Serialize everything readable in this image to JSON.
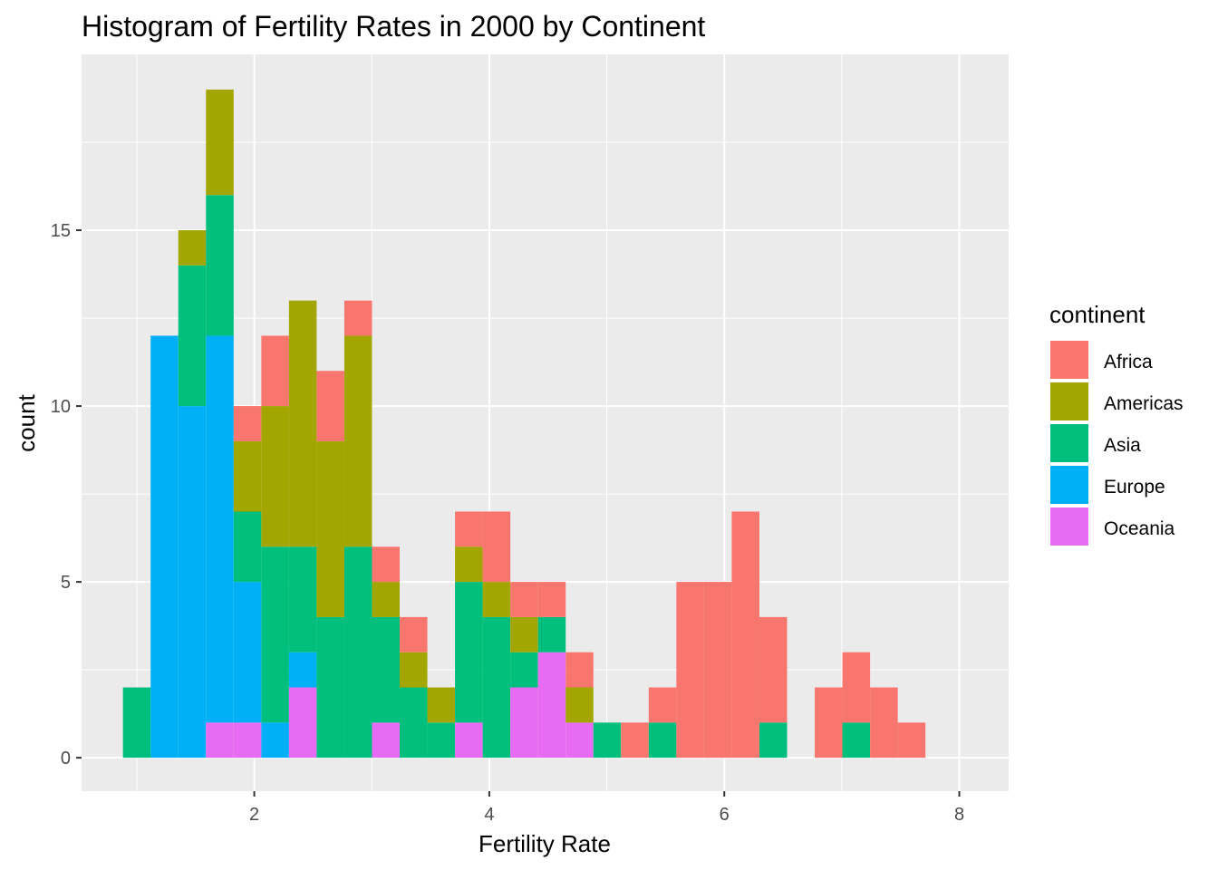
{
  "chart_data": {
    "type": "bar",
    "stacked": true,
    "title": "Histogram of Fertility Rates in 2000 by Continent",
    "xlabel": "Fertility Rate",
    "ylabel": "count",
    "xlim": [
      0.53,
      8.42
    ],
    "ylim": [
      -0.95,
      20.0
    ],
    "x_ticks": [
      2,
      4,
      6,
      8
    ],
    "y_ticks": [
      0,
      5,
      10,
      15
    ],
    "bin_width": 0.2355,
    "bin_centers": [
      1.0,
      1.2355,
      1.471,
      1.7065,
      1.942,
      2.1775,
      2.413,
      2.6485,
      2.884,
      3.1195,
      3.355,
      3.5905,
      3.826,
      4.0615,
      4.297,
      4.5325,
      4.768,
      5.0035,
      5.239,
      5.4745,
      5.71,
      5.9455,
      6.181,
      6.4165,
      6.652,
      6.8875,
      7.123,
      7.3585,
      7.594,
      7.8295
    ],
    "grid": true,
    "legend_title": "continent",
    "legend_position": "right",
    "stack_order": [
      "Oceania",
      "Europe",
      "Asia",
      "Americas",
      "Africa"
    ],
    "series": [
      {
        "name": "Africa",
        "color": "#F8766D",
        "values": [
          0,
          0,
          0,
          0,
          1,
          2,
          0,
          2,
          1,
          1,
          1,
          0,
          1,
          2,
          1,
          1,
          1,
          0,
          1,
          1,
          5,
          5,
          7,
          3,
          0,
          2,
          2,
          2,
          1,
          0
        ]
      },
      {
        "name": "Americas",
        "color": "#A3A500",
        "values": [
          0,
          0,
          1,
          3,
          2,
          4,
          7,
          5,
          6,
          1,
          1,
          1,
          1,
          1,
          1,
          0,
          1,
          0,
          0,
          0,
          0,
          0,
          0,
          0,
          0,
          0,
          0,
          0,
          0,
          0
        ]
      },
      {
        "name": "Asia",
        "color": "#00BF7D",
        "values": [
          2,
          0,
          4,
          4,
          2,
          5,
          3,
          4,
          6,
          3,
          2,
          1,
          4,
          4,
          1,
          1,
          0,
          1,
          0,
          1,
          0,
          0,
          0,
          1,
          0,
          0,
          1,
          0,
          0,
          0
        ]
      },
      {
        "name": "Europe",
        "color": "#00B0F6",
        "values": [
          0,
          12,
          10,
          11,
          4,
          1,
          1,
          0,
          0,
          0,
          0,
          0,
          0,
          0,
          0,
          0,
          0,
          0,
          0,
          0,
          0,
          0,
          0,
          0,
          0,
          0,
          0,
          0,
          0,
          0
        ]
      },
      {
        "name": "Oceania",
        "color": "#E76BF3",
        "values": [
          0,
          0,
          0,
          1,
          1,
          0,
          2,
          0,
          0,
          1,
          0,
          0,
          1,
          0,
          2,
          3,
          1,
          0,
          0,
          0,
          0,
          0,
          0,
          0,
          0,
          0,
          0,
          0,
          0,
          0
        ]
      }
    ],
    "colors": {
      "panel_background": "#EBEBEB",
      "grid_major": "#FFFFFF",
      "tick_text": "#4D4D4D"
    }
  }
}
